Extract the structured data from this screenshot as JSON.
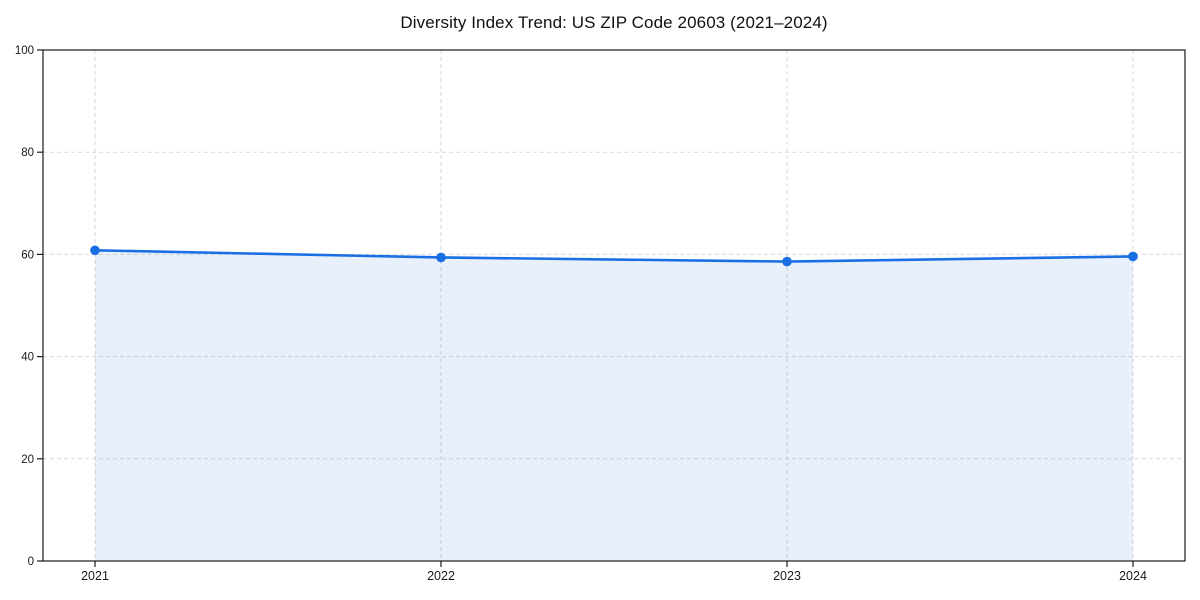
{
  "title": "Diversity Index Trend: US ZIP Code 20603 (2021–2024)",
  "chart_data": {
    "type": "line",
    "title": "Diversity Index Trend: US ZIP Code 20603 (2021–2024)",
    "categories": [
      "2021",
      "2022",
      "2023",
      "2024"
    ],
    "series": [
      {
        "name": "Diversity Index",
        "values": [
          60.8,
          59.4,
          58.6,
          59.6
        ]
      }
    ],
    "xlabel": "",
    "ylabel": "",
    "ylim": [
      0,
      100
    ],
    "yticks": [
      0,
      20,
      40,
      60,
      80,
      100
    ],
    "grid": "both, dashed",
    "legend": "none",
    "style": {
      "line_color": "#1b6fe4",
      "marker_color": "#1b6fe4",
      "area_fill_color": "rgba(27, 111, 228, 0.10)",
      "gridline_color": "#d9d9d9",
      "spine_color": "#1a1a1a",
      "tick_label_color": "#1a1a1a",
      "background_color": "#ffffff"
    }
  }
}
